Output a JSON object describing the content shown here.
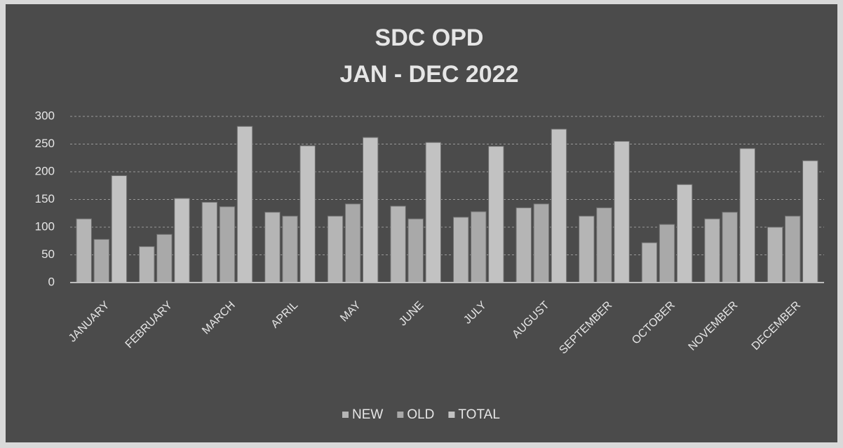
{
  "chart_data": {
    "type": "bar",
    "title": "SDC OPD",
    "subtitle": "JAN - DEC 2022",
    "categories": [
      "JANUARY",
      "FEBRUARY",
      "MARCH",
      "APRIL",
      "MAY",
      "JUNE",
      "JULY",
      "AUGUST",
      "SEPTEMBER",
      "OCTOBER",
      "NOVEMBER",
      "DECEMBER"
    ],
    "series": [
      {
        "name": "NEW",
        "color": "#b5b5b5",
        "values": [
          115,
          65,
          145,
          127,
          120,
          138,
          118,
          135,
          120,
          72,
          115,
          100
        ]
      },
      {
        "name": "OLD",
        "color": "#a9a9a9",
        "values": [
          78,
          87,
          137,
          120,
          142,
          115,
          128,
          142,
          135,
          105,
          127,
          120
        ]
      },
      {
        "name": "TOTAL",
        "color": "#c2c2c2",
        "values": [
          193,
          152,
          282,
          247,
          262,
          253,
          246,
          277,
          255,
          177,
          242,
          220
        ]
      }
    ],
    "ylim": [
      0,
      300
    ],
    "yticks": [
      0,
      50,
      100,
      150,
      200,
      250,
      300
    ],
    "grid": true,
    "legend": "bottom"
  }
}
